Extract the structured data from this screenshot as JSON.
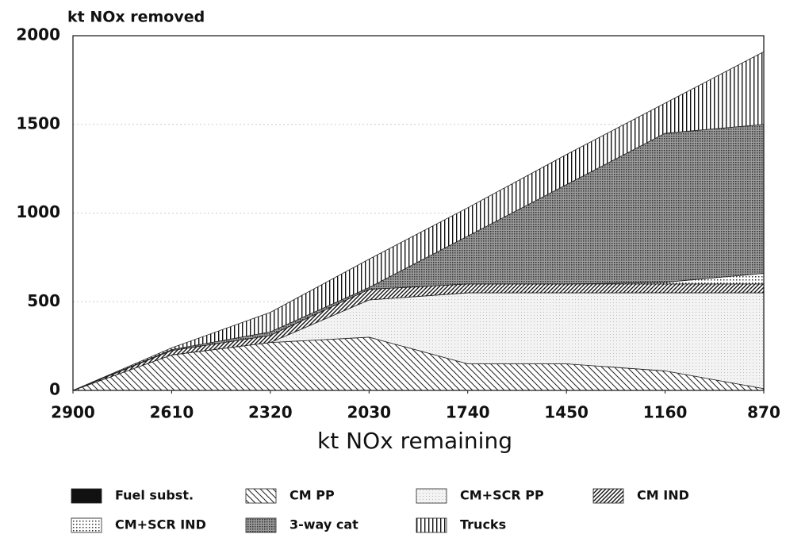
{
  "chart_data": {
    "type": "stacked_area",
    "y_label": "kt NOx removed",
    "x_label": "kt NOx remaining",
    "x": [
      2900,
      2610,
      2320,
      2030,
      1740,
      1450,
      1160,
      870
    ],
    "xlim": [
      2900,
      870
    ],
    "xticks": [
      2900,
      2610,
      2320,
      2030,
      1740,
      1450,
      1160,
      870
    ],
    "ylim": [
      0,
      2000
    ],
    "yticks": [
      0,
      500,
      1000,
      1500,
      2000
    ],
    "grid": true,
    "series": [
      {
        "name": "Fuel subst.",
        "color": "#111111",
        "values": [
          0,
          0,
          0,
          0,
          0,
          0,
          0,
          0
        ]
      },
      {
        "name": "CM PP",
        "color": "#cfcfcf",
        "values": [
          0,
          200,
          270,
          300,
          150,
          150,
          110,
          10
        ]
      },
      {
        "name": "CM+SCR PP",
        "color": "#f1f1f1",
        "values": [
          0,
          0,
          0,
          210,
          400,
          400,
          440,
          540
        ]
      },
      {
        "name": "CM IND",
        "color": "#8a8a8a",
        "values": [
          0,
          25,
          40,
          60,
          50,
          50,
          50,
          50
        ]
      },
      {
        "name": "CM+SCR IND",
        "color": "#e2e2e2",
        "values": [
          0,
          0,
          0,
          0,
          0,
          0,
          10,
          60
        ]
      },
      {
        "name": "3-way cat",
        "color": "#777777",
        "values": [
          0,
          5,
          20,
          10,
          270,
          560,
          840,
          840
        ]
      },
      {
        "name": "Trucks",
        "color": "#dcdcdc",
        "values": [
          0,
          10,
          110,
          160,
          160,
          170,
          170,
          410
        ]
      }
    ]
  }
}
